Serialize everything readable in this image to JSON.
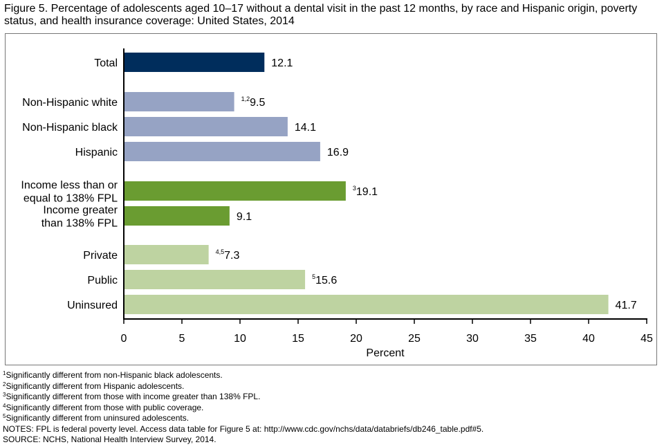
{
  "title": "Figure 5. Percentage of adolescents aged 10–17 without a dental visit in the past 12 months, by race and Hispanic origin, poverty status, and health insurance coverage: United States, 2014",
  "chart_data": {
    "type": "bar",
    "orientation": "horizontal",
    "title": "Figure 5. Percentage of adolescents aged 10–17 without a dental visit in the past 12 months, by race and Hispanic origin, poverty status, and health insurance coverage: United States, 2014",
    "xlabel": "Percent",
    "xlim": [
      0,
      45
    ],
    "xticks": [
      0,
      5,
      10,
      15,
      20,
      25,
      30,
      35,
      40,
      45
    ],
    "grid": false,
    "categories": [
      {
        "label": [
          "Total"
        ],
        "value": 12.1,
        "value_label": "12.1",
        "footnote": "",
        "color": "#002D5C"
      },
      {
        "label": [
          "Non-Hispanic white"
        ],
        "value": 9.5,
        "value_label": "9.5",
        "footnote": "1,2",
        "color": "#96A3C4"
      },
      {
        "label": [
          "Non-Hispanic black"
        ],
        "value": 14.1,
        "value_label": "14.1",
        "footnote": "",
        "color": "#96A3C4"
      },
      {
        "label": [
          "Hispanic"
        ],
        "value": 16.9,
        "value_label": "16.9",
        "footnote": "",
        "color": "#96A3C4"
      },
      {
        "label": [
          "Income less than or",
          "equal to 138% FPL"
        ],
        "value": 19.1,
        "value_label": "19.1",
        "footnote": "3",
        "color": "#6A9C31"
      },
      {
        "label": [
          "Income greater",
          "than 138% FPL"
        ],
        "value": 9.1,
        "value_label": "9.1",
        "footnote": "",
        "color": "#6A9C31"
      },
      {
        "label": [
          "Private"
        ],
        "value": 7.3,
        "value_label": "7.3",
        "footnote": "4,5",
        "color": "#BED3A1"
      },
      {
        "label": [
          "Public"
        ],
        "value": 15.6,
        "value_label": "15.6",
        "footnote": "5",
        "color": "#BED3A1"
      },
      {
        "label": [
          "Uninsured"
        ],
        "value": 41.7,
        "value_label": "41.7",
        "footnote": "",
        "color": "#BED3A1"
      }
    ]
  },
  "notes": [
    {
      "sup": "1",
      "text": "Significantly different from non-Hispanic black adolescents."
    },
    {
      "sup": "2",
      "text": "Significantly different from Hispanic adolescents."
    },
    {
      "sup": "3",
      "text": "Significantly different from those with income greater than 138% FPL."
    },
    {
      "sup": "4",
      "text": "Significantly different from those with public coverage."
    },
    {
      "sup": "5",
      "text": "Significantly different from uninsured adolescents."
    },
    {
      "sup": "",
      "text": "NOTES: FPL is federal poverty level. Access data table for Figure 5 at: http://www.cdc.gov/nchs/data/databriefs/db246_table.pdf#5."
    },
    {
      "sup": "",
      "text": "SOURCE: NCHS, National Health Interview Survey, 2014."
    }
  ]
}
